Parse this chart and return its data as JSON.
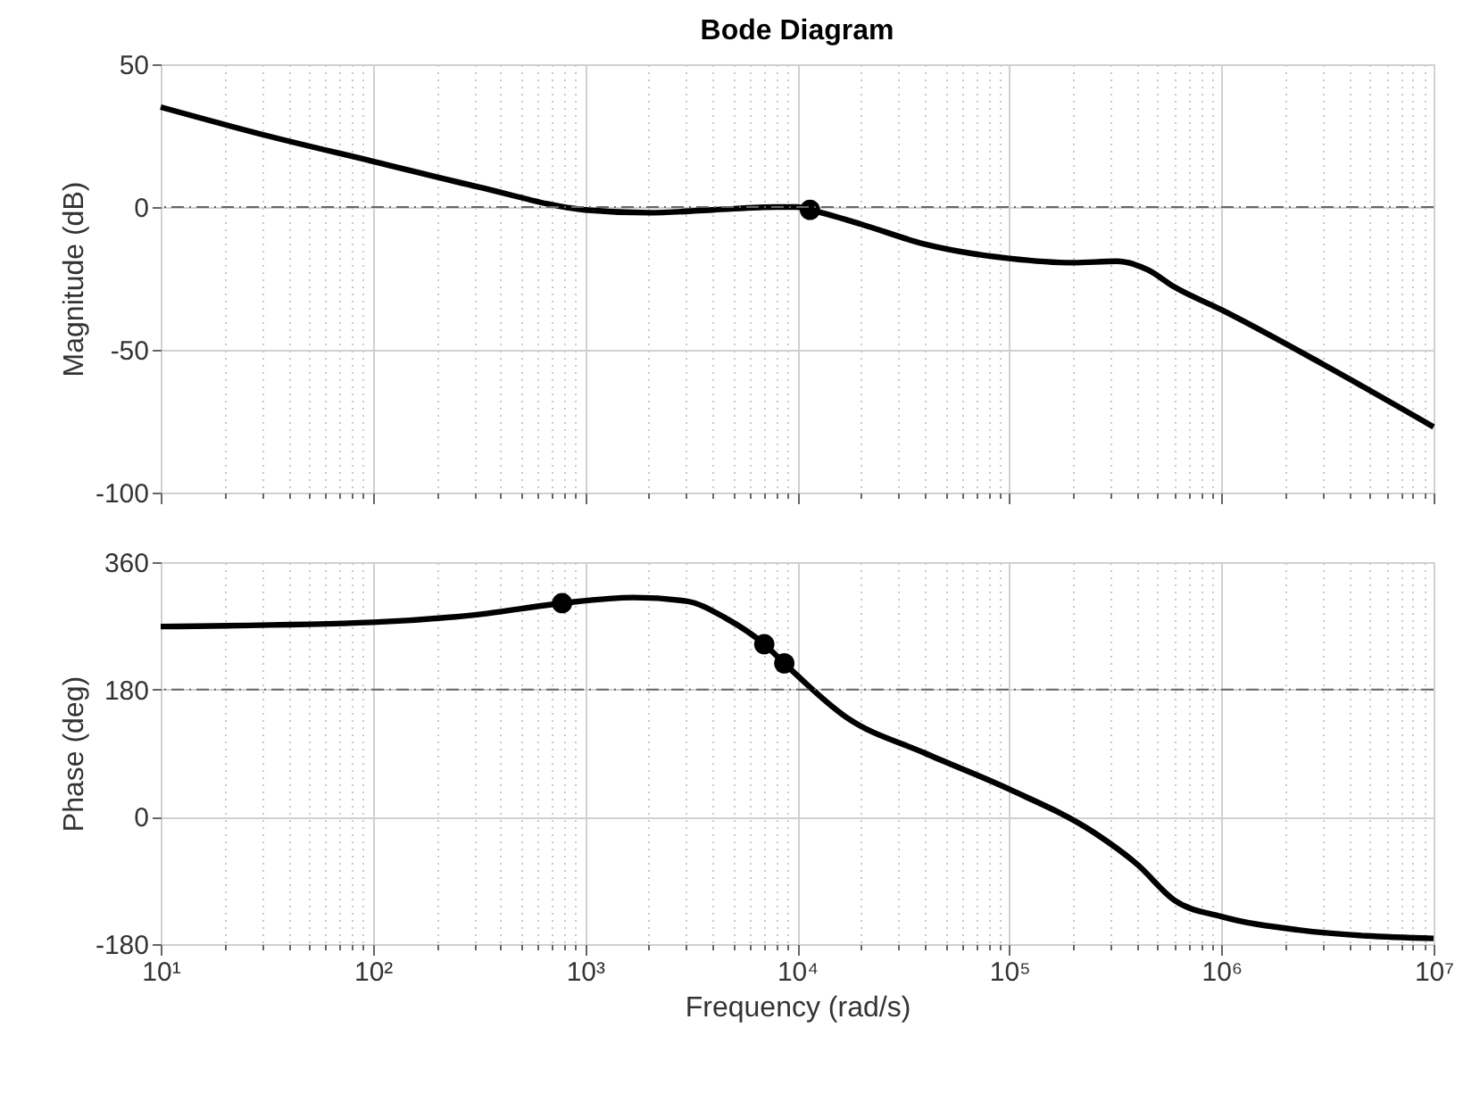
{
  "chart_data": [
    {
      "type": "line",
      "title": "Bode Diagram",
      "ylabel": "Magnitude (dB)",
      "log": "x",
      "grid": true,
      "tick_labels": "y",
      "marker": "none",
      "line_style": "solid",
      "xlim": [
        10,
        10000000
      ],
      "xticks": [
        {
          "value": 10,
          "label": null
        },
        {
          "value": 100,
          "label": null
        },
        {
          "value": 1000,
          "label": null
        },
        {
          "value": 10000,
          "label": null
        },
        {
          "value": 100000,
          "label": null
        },
        {
          "value": 1000000,
          "label": null
        },
        {
          "value": 10000000,
          "label": null
        }
      ],
      "ylim": [
        -100,
        50
      ],
      "yticks": [
        -100,
        -50,
        0,
        50
      ],
      "ref_lines": [
        {
          "axis": "y",
          "value": 0,
          "color": "#666666",
          "line_style": "dashed"
        }
      ],
      "series": [
        {
          "type": "line",
          "color": "#000000",
          "x": [
            10,
            31.6,
            100,
            316,
            1000,
            2000,
            4000,
            8000,
            10000,
            11500,
            20000,
            40000,
            100000,
            200000,
            320000,
            450000,
            600000,
            1000000,
            3000000,
            10000000
          ],
          "values": [
            35,
            25,
            16,
            7,
            -1,
            -2,
            -1,
            0,
            0,
            -1,
            -6,
            -13,
            -18,
            -19.5,
            -19,
            -22,
            -28,
            -36,
            -55,
            -77
          ]
        },
        {
          "type": "scatter",
          "marker": "circle",
          "color": "#000000",
          "x": [
            11500
          ],
          "values": [
            -1
          ]
        }
      ]
    },
    {
      "type": "line",
      "xlabel": "Frequency  (rad/s)",
      "ylabel": "Phase (deg)",
      "log": "x",
      "grid": true,
      "marker": "none",
      "line_style": "solid",
      "xlim": [
        10,
        10000000
      ],
      "xticks": [
        {
          "value": 10,
          "label": "10¹"
        },
        {
          "value": 100,
          "label": "10²"
        },
        {
          "value": 1000,
          "label": "10³"
        },
        {
          "value": 10000,
          "label": "10⁴"
        },
        {
          "value": 100000,
          "label": "10⁵"
        },
        {
          "value": 1000000,
          "label": "10⁶"
        },
        {
          "value": 10000000,
          "label": "10⁷"
        }
      ],
      "ylim": [
        -180,
        360
      ],
      "yticks": [
        -180,
        0,
        180,
        360
      ],
      "ref_lines": [
        {
          "axis": "y",
          "value": 180,
          "color": "#666666",
          "line_style": "dashed"
        }
      ],
      "series": [
        {
          "type": "line",
          "color": "#000000",
          "x": [
            10,
            100,
            316,
            780,
            1700,
            3000,
            4600,
            7000,
            8700,
            17000,
            40000,
            100000,
            250000,
            400000,
            600000,
            1000000,
            2300000,
            10000000
          ],
          "values": [
            269,
            275,
            286,
            302,
            310,
            305,
            281,
            244,
            217,
            141,
            90,
            39,
            -22,
            -67,
            -118,
            -141,
            -160,
            -172
          ]
        },
        {
          "type": "scatter",
          "marker": "circle",
          "color": "#000000",
          "x": [
            780,
            7000,
            8700
          ],
          "values": [
            302,
            244,
            217
          ]
        }
      ]
    }
  ]
}
